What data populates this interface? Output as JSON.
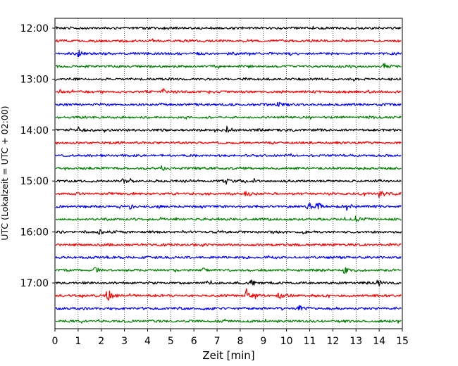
{
  "chart_data": {
    "type": "line",
    "title": "",
    "xlabel": "Zeit  [min]",
    "ylabel": "UTC (Lokalzeit = UTC + 02:00)",
    "xlim": [
      0,
      15
    ],
    "x_ticks": [
      0,
      1,
      2,
      3,
      4,
      5,
      6,
      7,
      8,
      9,
      10,
      11,
      12,
      13,
      14,
      15
    ],
    "y_tick_labels": [
      "12:00",
      "13:00",
      "14:00",
      "15:00",
      "16:00",
      "17:00"
    ],
    "trace_interval_min": 15,
    "start_time": "12:00",
    "end_time": "17:45",
    "grid": "vertical-dotted",
    "colors": [
      "#000000",
      "#ff0000",
      "#0000ff",
      "#008000"
    ],
    "traces": [
      {
        "time": "12:00",
        "color_index": 0,
        "events": []
      },
      {
        "time": "12:15",
        "color_index": 1,
        "events": []
      },
      {
        "time": "12:30",
        "color_index": 2,
        "events": [
          {
            "minute": 1.0,
            "amplitude": 4
          }
        ]
      },
      {
        "time": "12:45",
        "color_index": 3,
        "events": [
          {
            "minute": 14.2,
            "amplitude": 5
          }
        ]
      },
      {
        "time": "13:00",
        "color_index": 0,
        "events": []
      },
      {
        "time": "13:15",
        "color_index": 1,
        "events": [
          {
            "minute": 4.6,
            "amplitude": 5
          }
        ]
      },
      {
        "time": "13:30",
        "color_index": 2,
        "events": [
          {
            "minute": 9.6,
            "amplitude": 4
          }
        ]
      },
      {
        "time": "13:45",
        "color_index": 3,
        "events": []
      },
      {
        "time": "14:00",
        "color_index": 0,
        "events": [
          {
            "minute": 0.9,
            "amplitude": 6
          },
          {
            "minute": 7.4,
            "amplitude": 4
          }
        ]
      },
      {
        "time": "14:15",
        "color_index": 1,
        "events": []
      },
      {
        "time": "14:30",
        "color_index": 2,
        "events": []
      },
      {
        "time": "14:45",
        "color_index": 3,
        "events": [
          {
            "minute": 4.6,
            "amplitude": 4
          }
        ]
      },
      {
        "time": "15:00",
        "color_index": 0,
        "events": [
          {
            "minute": 2.9,
            "amplitude": 4
          },
          {
            "minute": 7.4,
            "amplitude": 4
          }
        ]
      },
      {
        "time": "15:15",
        "color_index": 1,
        "events": [
          {
            "minute": 8.2,
            "amplitude": 4
          },
          {
            "minute": 14.0,
            "amplitude": 5
          }
        ]
      },
      {
        "time": "15:30",
        "color_index": 2,
        "events": [
          {
            "minute": 3.2,
            "amplitude": 4
          },
          {
            "minute": 10.9,
            "amplitude": 9
          },
          {
            "minute": 11.3,
            "amplitude": 6
          },
          {
            "minute": 12.6,
            "amplitude": 5
          }
        ]
      },
      {
        "time": "15:45",
        "color_index": 3,
        "events": [
          {
            "minute": 13.0,
            "amplitude": 4
          }
        ]
      },
      {
        "time": "16:00",
        "color_index": 0,
        "events": [
          {
            "minute": 1.9,
            "amplitude": 4
          }
        ]
      },
      {
        "time": "16:15",
        "color_index": 1,
        "events": []
      },
      {
        "time": "16:30",
        "color_index": 2,
        "events": []
      },
      {
        "time": "16:45",
        "color_index": 3,
        "events": [
          {
            "minute": 1.7,
            "amplitude": 4
          },
          {
            "minute": 6.3,
            "amplitude": 4
          },
          {
            "minute": 12.5,
            "amplitude": 4
          }
        ]
      },
      {
        "time": "17:00",
        "color_index": 0,
        "events": [
          {
            "minute": 8.4,
            "amplitude": 5
          },
          {
            "minute": 13.9,
            "amplitude": 4
          }
        ]
      },
      {
        "time": "17:15",
        "color_index": 1,
        "events": [
          {
            "minute": 2.25,
            "amplitude": 10
          },
          {
            "minute": 8.25,
            "amplitude": 10
          },
          {
            "minute": 9.6,
            "amplitude": 6
          }
        ]
      },
      {
        "time": "17:30",
        "color_index": 2,
        "events": [
          {
            "minute": 10.5,
            "amplitude": 4
          }
        ]
      },
      {
        "time": "17:45",
        "color_index": 3,
        "events": []
      }
    ]
  }
}
